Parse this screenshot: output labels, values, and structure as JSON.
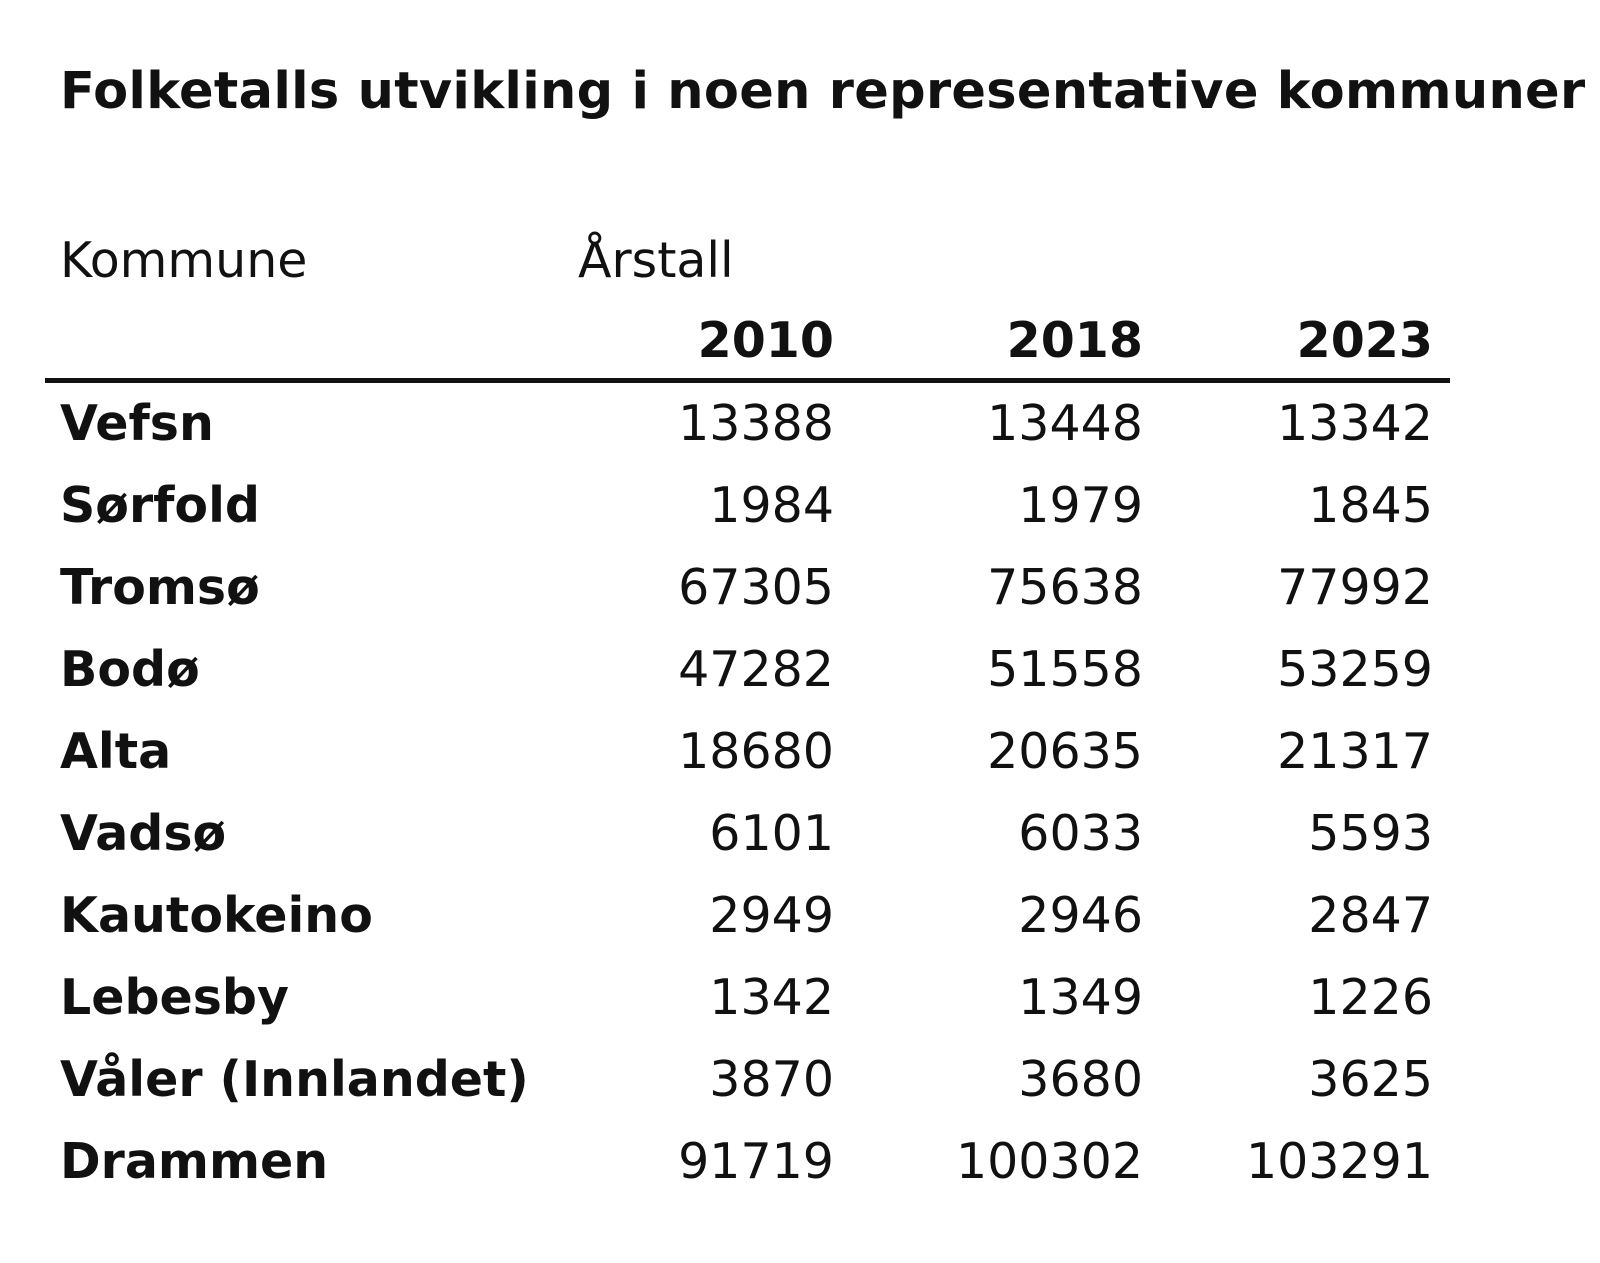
{
  "chart_data": {
    "type": "table",
    "title": "Folketalls utvikling i noen representative kommuner",
    "row_header_label": "Kommune",
    "column_group_label": "Årstall",
    "columns": [
      "2010",
      "2018",
      "2023"
    ],
    "rows": [
      {
        "kommune": "Vefsn",
        "values": [
          13388,
          13448,
          13342
        ]
      },
      {
        "kommune": "Sørfold",
        "values": [
          1984,
          1979,
          1845
        ]
      },
      {
        "kommune": "Tromsø",
        "values": [
          67305,
          75638,
          77992
        ]
      },
      {
        "kommune": "Bodø",
        "values": [
          47282,
          51558,
          53259
        ]
      },
      {
        "kommune": "Alta",
        "values": [
          18680,
          20635,
          21317
        ]
      },
      {
        "kommune": "Vadsø",
        "values": [
          6101,
          6033,
          5593
        ]
      },
      {
        "kommune": "Kautokeino",
        "values": [
          2949,
          2946,
          2847
        ]
      },
      {
        "kommune": "Lebesby",
        "values": [
          1342,
          1349,
          1226
        ]
      },
      {
        "kommune": "Våler (Innlandet)",
        "values": [
          3870,
          3680,
          3625
        ]
      },
      {
        "kommune": "Drammen",
        "values": [
          91719,
          100302,
          103291
        ]
      }
    ]
  }
}
